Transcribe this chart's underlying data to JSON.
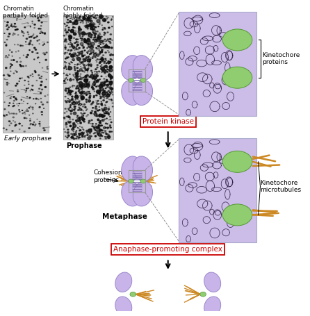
{
  "bg_color": "#ffffff",
  "purple_chrom": "#c8b4e8",
  "purple_light": "#d8c8f0",
  "green_kinet": "#90cc70",
  "orange_mt": "#cc8822",
  "red_box": "#cc0000",
  "label_protein_kinase": "Protein kinase",
  "label_anaphase": "Anaphase-promoting complex",
  "label_kinetochore_proteins": "Kinetochore\nproteins",
  "label_kinetochore_mt": "Kinetochore\nmicrotubules",
  "label_cohesion": "Cohesion\nproteins",
  "label_early": "Early prophase",
  "label_prophase": "Prophase",
  "label_metaphase": "Metaphase",
  "label_chrom_partial": "Chromatin\npartially folded",
  "label_chrom_highly": "Chromatin\nhighly folded",
  "fig_w": 4.46,
  "fig_h": 4.55,
  "dpi": 100
}
